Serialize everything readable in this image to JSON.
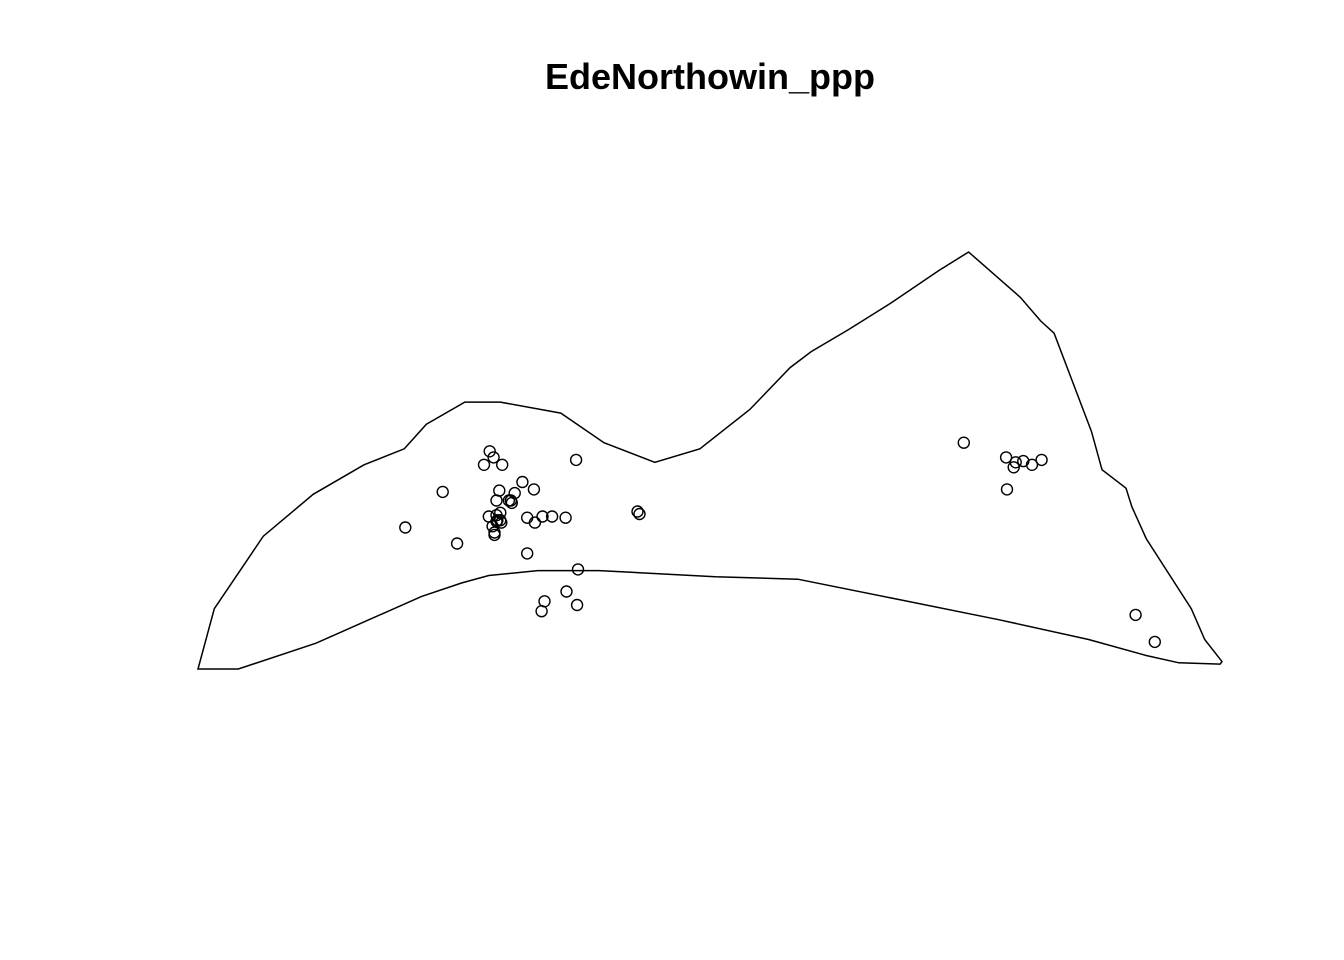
{
  "chart_data": {
    "type": "scatter",
    "title": "EdeNorthowin_ppp",
    "xlabel": "",
    "ylabel": "",
    "grid": false,
    "axes_shown": false,
    "point_marker": "open-circle",
    "window_boundary": {
      "x": [
        -1.5,
        0.2,
        5.3,
        10.5,
        15.8,
        20.0,
        22.3,
        26.3,
        30.0,
        36.3,
        40.8,
        46.1,
        50.8,
        56.0,
        60.2,
        62.4,
        66.3,
        70.8,
        75.7,
        78.8,
        84.2,
        86.3,
        87.7,
        91.6,
        92.7,
        95.2,
        95.8,
        97.3,
        102.0,
        103.4,
        105.2,
        105.0,
        100.7,
        97.3,
        91.3,
        82.0,
        71.2,
        61.0,
        52.4,
        40.3,
        33.9,
        28.8,
        26.0,
        21.8,
        10.8,
        2.7,
        -1.5,
        -1.5
      ],
      "y": [
        0.0,
        4.9,
        10.8,
        14.2,
        16.6,
        17.9,
        19.9,
        21.7,
        21.7,
        20.8,
        18.4,
        16.8,
        17.9,
        21.1,
        24.5,
        25.8,
        27.6,
        29.8,
        32.4,
        33.9,
        30.2,
        28.3,
        27.3,
        19.3,
        16.2,
        14.7,
        13.2,
        10.6,
        4.9,
        2.4,
        0.6,
        0.4,
        0.5,
        1.1,
        2.4,
        4.0,
        5.7,
        7.3,
        7.5,
        8.0,
        8.0,
        7.6,
        7.0,
        5.9,
        2.1,
        0.0,
        0.0,
        0.0
      ],
      "xlim": [
        -1.5,
        105.2
      ],
      "ylim": [
        0.0,
        33.9
      ]
    },
    "points": {
      "x": [
        20.1,
        25.5,
        28.9,
        29.3,
        28.3,
        30.2,
        29.9,
        29.6,
        31.5,
        30.9,
        31.1,
        31.2,
        30.0,
        29.7,
        29.6,
        29.2,
        30.1,
        30.0,
        28.8,
        29.6,
        29.4,
        29.4,
        32.3,
        33.5,
        32.8,
        33.6,
        34.4,
        35.4,
        36.8,
        37.9,
        32.8,
        38.1,
        36.9,
        34.6,
        34.3,
        38.0,
        44.3,
        44.5,
        24.0,
        78.3,
        83.5,
        82.7,
        83.7,
        85.4,
        84.5,
        86.4,
        82.8,
        96.2,
        98.2
      ],
      "y": [
        11.5,
        10.2,
        17.7,
        17.2,
        16.6,
        16.6,
        14.5,
        13.7,
        14.3,
        13.7,
        13.7,
        13.5,
        12.7,
        12.1,
        12.0,
        11.6,
        11.9,
        12.1,
        12.4,
        12.5,
        11.1,
        10.9,
        15.2,
        14.6,
        12.3,
        11.9,
        12.4,
        12.4,
        12.3,
        17.0,
        9.4,
        8.1,
        6.3,
        5.5,
        4.7,
        5.2,
        12.8,
        12.6,
        14.4,
        18.4,
        16.4,
        17.2,
        16.8,
        16.6,
        16.9,
        17.0,
        14.6,
        4.4,
        2.2
      ]
    }
  }
}
